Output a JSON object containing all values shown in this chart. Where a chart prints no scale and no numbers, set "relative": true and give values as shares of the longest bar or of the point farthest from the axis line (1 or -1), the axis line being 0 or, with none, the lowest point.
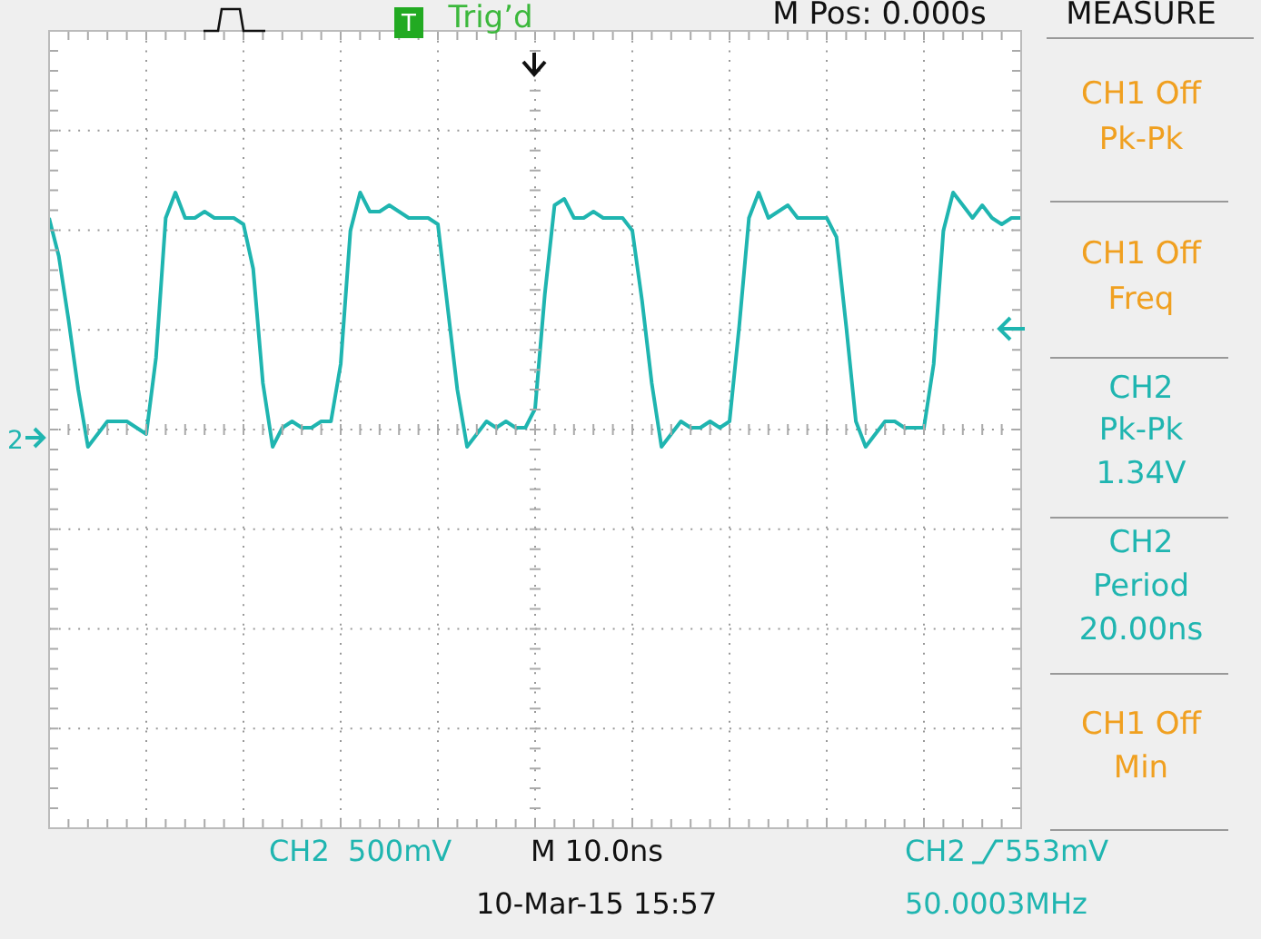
{
  "chart_data": {
    "type": "line",
    "relative": true,
    "grid": true,
    "marker": "none",
    "line_style": "solid",
    "categories": [
      null,
      null,
      null,
      null,
      null,
      null,
      null,
      null,
      null,
      null,
      null,
      null,
      null,
      null,
      null,
      null,
      null,
      null,
      null,
      null,
      null,
      null,
      null,
      null,
      null,
      null,
      null,
      null,
      null,
      null,
      null,
      null,
      null,
      null,
      null,
      null,
      null,
      null,
      null,
      null,
      null,
      null,
      null,
      null,
      null,
      null,
      null,
      null,
      null,
      null,
      null,
      null,
      null,
      null,
      null,
      null,
      null,
      null,
      null,
      null,
      null,
      null,
      null,
      null,
      null,
      null,
      null,
      null,
      null,
      null,
      null,
      null,
      null,
      null,
      null,
      null,
      null,
      null,
      null,
      null,
      null,
      null,
      null,
      null,
      null,
      null,
      null,
      null,
      null,
      null,
      null,
      null,
      null,
      null,
      null,
      null,
      null,
      null,
      null,
      null,
      null
    ],
    "series": [
      {
        "color": "#1fb5b0",
        "values": [
          0.96,
          0.9,
          0.8,
          0.69,
          0.6,
          0.62,
          0.64,
          0.64,
          0.64,
          0.63,
          0.62,
          0.74,
          0.96,
          1.0,
          0.96,
          0.96,
          0.97,
          0.96,
          0.96,
          0.96,
          0.95,
          0.88,
          0.7,
          0.6,
          0.63,
          0.64,
          0.63,
          0.63,
          0.64,
          0.64,
          0.73,
          0.94,
          1.0,
          0.97,
          0.97,
          0.98,
          0.97,
          0.96,
          0.96,
          0.96,
          0.95,
          0.82,
          0.69,
          0.6,
          0.62,
          0.64,
          0.63,
          0.64,
          0.63,
          0.63,
          0.66,
          0.84,
          0.98,
          0.99,
          0.96,
          0.96,
          0.97,
          0.96,
          0.96,
          0.96,
          0.94,
          0.83,
          0.7,
          0.6,
          0.62,
          0.64,
          0.63,
          0.63,
          0.64,
          0.63,
          0.64,
          0.79,
          0.96,
          1,
          0.96,
          0.97,
          0.98,
          0.96,
          0.96,
          0.96,
          0.96,
          0.93,
          0.79,
          0.64,
          0.6,
          0.62,
          0.64,
          0.64,
          0.63,
          0.63,
          0.63,
          0.73,
          0.94,
          1,
          0.98,
          0.96,
          0.98,
          0.96,
          0.95,
          0.96,
          0.96
        ]
      }
    ],
    "annotations": [
      "T",
      "Trig’d",
      "M Pos: 0.000s",
      "MEASURE",
      "CH1 Off",
      "Pk-Pk",
      "CH1 Off",
      "Freq",
      "CH2",
      "Pk-Pk",
      "1.34V",
      "CH2",
      "Period",
      "20.00ns",
      "CH1 Off",
      "Min",
      "CH2  500mV",
      "M 10.0ns",
      "10-Mar-15 15:57",
      "CH2",
      "553mV",
      "50.0003MHz",
      "2"
    ]
  }
}
